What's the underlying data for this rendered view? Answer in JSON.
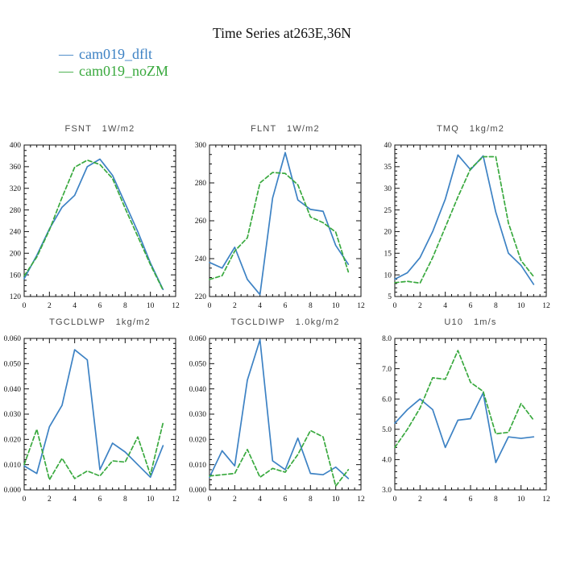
{
  "page_title": "Time Series at263E,36N",
  "legend": {
    "entries": [
      {
        "marker": "—",
        "label": "cam019_dflt",
        "color": "#3d82c4",
        "line_style": "solid"
      },
      {
        "marker": "—",
        "label": "cam019_noZM",
        "color": "#39a93e",
        "line_style": "dashed"
      }
    ]
  },
  "chart_data": [
    {
      "type": "line",
      "name": "FSNT",
      "units": "1W/m2",
      "title": "FSNT   1W/m2",
      "x": [
        0,
        1,
        2,
        3,
        4,
        5,
        6,
        7,
        8,
        9,
        10,
        11
      ],
      "xlim": [
        0,
        12
      ],
      "xtick_major": 2,
      "xtick_minor": 0.5,
      "ylim": [
        120,
        400
      ],
      "ytick_major": 40,
      "ytick_minor": 10,
      "ydecimals": 0,
      "grid": false,
      "legend_position": "none",
      "series": [
        {
          "name": "cam019_dflt",
          "values": [
            153,
            196,
            245,
            285,
            307,
            360,
            374,
            344,
            292,
            240,
            182,
            133
          ]
        },
        {
          "name": "cam019_noZM",
          "values": [
            158,
            193,
            243,
            303,
            359,
            372,
            364,
            338,
            283,
            231,
            179,
            132
          ]
        }
      ]
    },
    {
      "type": "line",
      "name": "FLNT",
      "units": "1W/m2",
      "title": "FLNT   1W/m2",
      "x": [
        0,
        1,
        2,
        3,
        4,
        5,
        6,
        7,
        8,
        9,
        10,
        11
      ],
      "xlim": [
        0,
        12
      ],
      "xtick_major": 2,
      "xtick_minor": 0.5,
      "ylim": [
        220,
        300
      ],
      "ytick_major": 20,
      "ytick_minor": 5,
      "ydecimals": 0,
      "grid": false,
      "legend_position": "none",
      "series": [
        {
          "name": "cam019_dflt",
          "values": [
            238,
            235,
            246,
            229,
            221,
            272,
            296,
            271,
            266,
            265,
            247,
            237
          ]
        },
        {
          "name": "cam019_noZM",
          "values": [
            229,
            231,
            244,
            251,
            280,
            285.5,
            285,
            279,
            262,
            259,
            254,
            233
          ]
        }
      ]
    },
    {
      "type": "line",
      "name": "TMQ",
      "units": "1kg/m2",
      "title": "TMQ   1kg/m2",
      "x": [
        0,
        1,
        2,
        3,
        4,
        5,
        6,
        7,
        8,
        9,
        10,
        11
      ],
      "xlim": [
        0,
        12
      ],
      "xtick_major": 2,
      "xtick_minor": 0.5,
      "ylim": [
        5,
        40
      ],
      "ytick_major": 5,
      "ytick_minor": 1,
      "ydecimals": 0,
      "grid": false,
      "legend_position": "none",
      "series": [
        {
          "name": "cam019_dflt",
          "values": [
            9,
            10.5,
            14,
            20,
            27.5,
            37.7,
            34.3,
            37.5,
            24.5,
            15,
            12.2,
            7.8
          ]
        },
        {
          "name": "cam019_noZM",
          "values": [
            8.2,
            8.5,
            8.1,
            14,
            21,
            28,
            34.5,
            37.3,
            37.3,
            22,
            13.3,
            9.6
          ]
        }
      ]
    },
    {
      "type": "line",
      "name": "TGCLDLWP",
      "units": "1kg/m2",
      "title": "TGCLDLWP   1kg/m2",
      "x": [
        0,
        1,
        2,
        3,
        4,
        5,
        6,
        7,
        8,
        9,
        10,
        11
      ],
      "xlim": [
        0,
        12
      ],
      "xtick_major": 2,
      "xtick_minor": 0.5,
      "ylim": [
        0.0,
        0.06
      ],
      "ytick_major": 0.01,
      "ytick_minor": 0.002,
      "ydecimals": 3,
      "grid": false,
      "legend_position": "none",
      "series": [
        {
          "name": "cam019_dflt",
          "values": [
            0.0095,
            0.0065,
            0.025,
            0.0335,
            0.0555,
            0.0515,
            0.008,
            0.0185,
            0.015,
            0.01,
            0.005,
            0.0175
          ]
        },
        {
          "name": "cam019_noZM",
          "values": [
            0.01,
            0.024,
            0.004,
            0.0125,
            0.0045,
            0.0075,
            0.0055,
            0.0115,
            0.011,
            0.021,
            0.006,
            0.0265
          ]
        }
      ]
    },
    {
      "type": "line",
      "name": "TGCLDIWP",
      "units": "1.0kg/m2",
      "title": "TGCLDIWP   1.0kg/m2",
      "x": [
        0,
        1,
        2,
        3,
        4,
        5,
        6,
        7,
        8,
        9,
        10,
        11
      ],
      "xlim": [
        0,
        12
      ],
      "xtick_major": 2,
      "xtick_minor": 0.5,
      "ylim": [
        0.0,
        0.06
      ],
      "ytick_major": 0.01,
      "ytick_minor": 0.002,
      "ydecimals": 3,
      "grid": false,
      "legend_position": "none",
      "series": [
        {
          "name": "cam019_dflt",
          "values": [
            0.005,
            0.0155,
            0.0095,
            0.0435,
            0.0595,
            0.0115,
            0.008,
            0.0205,
            0.0065,
            0.006,
            0.009,
            0.0045
          ]
        },
        {
          "name": "cam019_noZM",
          "values": [
            0.0055,
            0.006,
            0.0065,
            0.016,
            0.005,
            0.0085,
            0.007,
            0.014,
            0.0235,
            0.021,
            0.0015,
            0.008
          ]
        }
      ]
    },
    {
      "type": "line",
      "name": "U10",
      "units": "1m/s",
      "title": "U10   1m/s",
      "x": [
        0,
        1,
        2,
        3,
        4,
        5,
        6,
        7,
        8,
        9,
        10,
        11
      ],
      "xlim": [
        0,
        12
      ],
      "xtick_major": 2,
      "xtick_minor": 0.5,
      "ylim": [
        3.0,
        8.0
      ],
      "ytick_major": 1.0,
      "ytick_minor": 0.2,
      "ydecimals": 1,
      "grid": false,
      "legend_position": "none",
      "series": [
        {
          "name": "cam019_dflt",
          "values": [
            5.2,
            5.65,
            6.0,
            5.65,
            4.4,
            5.3,
            5.35,
            6.2,
            3.9,
            4.75,
            4.7,
            4.75
          ]
        },
        {
          "name": "cam019_noZM",
          "values": [
            4.4,
            5.0,
            5.7,
            6.7,
            6.65,
            7.6,
            6.55,
            6.25,
            4.85,
            4.9,
            5.85,
            5.3
          ]
        }
      ]
    }
  ]
}
